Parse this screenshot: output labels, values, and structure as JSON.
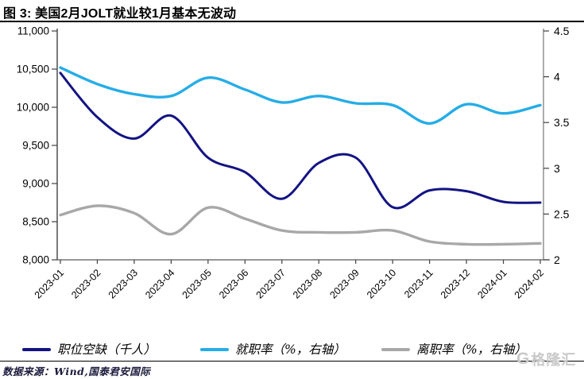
{
  "title": "图 3:  美国2月JOLT就业较1月基本无波动",
  "chart_data": {
    "type": "line",
    "categories": [
      "2023-01",
      "2023-02",
      "2023-03",
      "2023-04",
      "2023-05",
      "2023-06",
      "2023-07",
      "2023-08",
      "2023-09",
      "2023-10",
      "2023-11",
      "2023-12",
      "2024-01",
      "2024-02"
    ],
    "series": [
      {
        "id": "job-openings",
        "name": "职位空缺（千人）",
        "axis": "left",
        "color": "#131383",
        "line_width": 3,
        "values": [
          10450,
          9870,
          9590,
          9890,
          9340,
          9150,
          8800,
          9270,
          9340,
          8690,
          8910,
          8900,
          8760,
          8750
        ]
      },
      {
        "id": "hires-rate",
        "name": "就职率（%，右轴）",
        "axis": "right",
        "color": "#25ade6",
        "line_width": 3.4,
        "values": [
          4.1,
          3.92,
          3.81,
          3.79,
          3.99,
          3.86,
          3.72,
          3.79,
          3.71,
          3.69,
          3.49,
          3.7,
          3.6,
          3.69
        ]
      },
      {
        "id": "quits-rate",
        "name": "离职率（%，右轴）",
        "axis": "right",
        "color": "#a8a8a8",
        "line_width": 3.4,
        "values": [
          2.49,
          2.59,
          2.51,
          2.28,
          2.57,
          2.45,
          2.32,
          2.3,
          2.3,
          2.32,
          2.2,
          2.17,
          2.17,
          2.18
        ]
      }
    ],
    "left_axis": {
      "min": 8000,
      "max": 11000,
      "tick_labels": [
        "11,000",
        "10,500",
        "10,000",
        "9,500",
        "9,000",
        "8,500",
        "8,000"
      ]
    },
    "right_axis": {
      "min": 2,
      "max": 4.5,
      "tick_labels": [
        "4.5",
        "4",
        "3.5",
        "3",
        "2.5",
        "2"
      ]
    },
    "grid": false,
    "legend_position": "bottom",
    "smoothed": true
  },
  "legend": {
    "items": [
      {
        "label": "职位空缺（千人）"
      },
      {
        "label": "就职率（%，右轴）"
      },
      {
        "label": "离职率（%，右轴）"
      }
    ]
  },
  "footer": {
    "source_label": "数据来源：Wind,国泰君安国际"
  },
  "watermark": {
    "logo_letter": "G",
    "text": "格隆汇"
  }
}
